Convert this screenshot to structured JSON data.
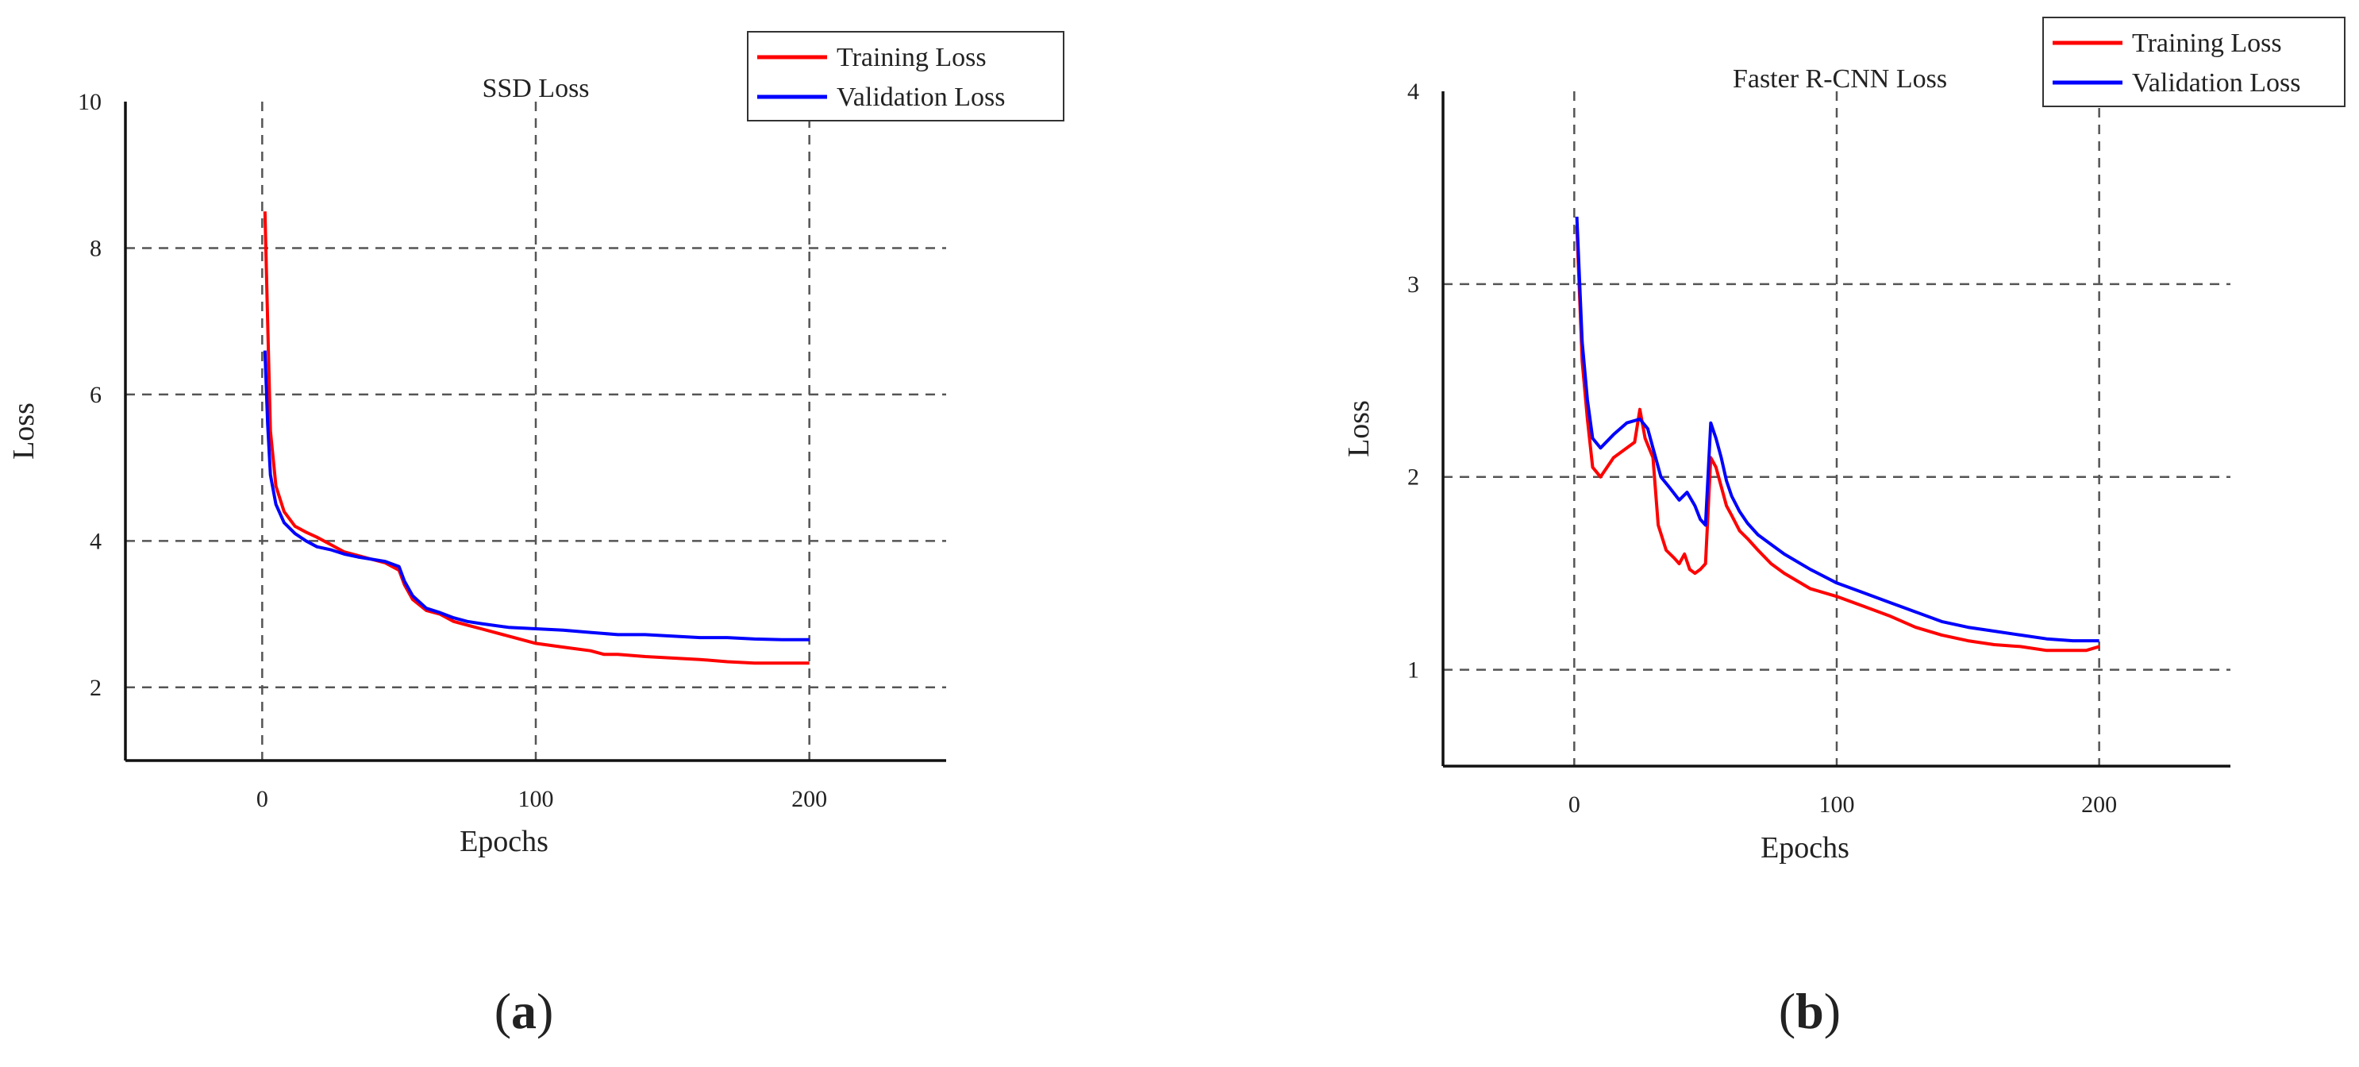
{
  "chart_data": [
    {
      "type": "line",
      "panel": "(a)",
      "panel_letter": "a",
      "title": "SSD Loss",
      "xlabel": "Epochs",
      "ylabel": "Loss",
      "xlim": [
        -50,
        250
      ],
      "ylim": [
        1,
        10
      ],
      "xticks": [
        0,
        100,
        200
      ],
      "yticks": [
        2,
        4,
        6,
        8,
        10
      ],
      "grid": true,
      "legend_position": "top-right",
      "series": [
        {
          "name": "Training Loss",
          "color": "#ff0000",
          "points": [
            [
              1,
              8.5
            ],
            [
              2,
              7.0
            ],
            [
              3,
              5.5
            ],
            [
              5,
              4.75
            ],
            [
              8,
              4.4
            ],
            [
              12,
              4.2
            ],
            [
              16,
              4.12
            ],
            [
              20,
              4.05
            ],
            [
              25,
              3.95
            ],
            [
              30,
              3.85
            ],
            [
              35,
              3.8
            ],
            [
              40,
              3.75
            ],
            [
              45,
              3.7
            ],
            [
              50,
              3.6
            ],
            [
              52,
              3.4
            ],
            [
              55,
              3.2
            ],
            [
              60,
              3.05
            ],
            [
              65,
              3.0
            ],
            [
              70,
              2.9
            ],
            [
              75,
              2.85
            ],
            [
              80,
              2.8
            ],
            [
              90,
              2.7
            ],
            [
              100,
              2.6
            ],
            [
              110,
              2.55
            ],
            [
              120,
              2.5
            ],
            [
              125,
              2.45
            ],
            [
              130,
              2.45
            ],
            [
              140,
              2.42
            ],
            [
              150,
              2.4
            ],
            [
              160,
              2.38
            ],
            [
              170,
              2.35
            ],
            [
              180,
              2.33
            ],
            [
              190,
              2.33
            ],
            [
              200,
              2.33
            ]
          ]
        },
        {
          "name": "Validation Loss",
          "color": "#0000ff",
          "points": [
            [
              1,
              6.6
            ],
            [
              2,
              5.6
            ],
            [
              3,
              4.9
            ],
            [
              5,
              4.5
            ],
            [
              8,
              4.25
            ],
            [
              12,
              4.1
            ],
            [
              16,
              4.0
            ],
            [
              20,
              3.92
            ],
            [
              25,
              3.88
            ],
            [
              30,
              3.82
            ],
            [
              35,
              3.78
            ],
            [
              40,
              3.75
            ],
            [
              45,
              3.72
            ],
            [
              50,
              3.65
            ],
            [
              52,
              3.45
            ],
            [
              55,
              3.25
            ],
            [
              60,
              3.08
            ],
            [
              65,
              3.02
            ],
            [
              70,
              2.95
            ],
            [
              75,
              2.9
            ],
            [
              80,
              2.87
            ],
            [
              90,
              2.82
            ],
            [
              100,
              2.8
            ],
            [
              110,
              2.78
            ],
            [
              120,
              2.75
            ],
            [
              130,
              2.72
            ],
            [
              140,
              2.72
            ],
            [
              150,
              2.7
            ],
            [
              160,
              2.68
            ],
            [
              170,
              2.68
            ],
            [
              180,
              2.66
            ],
            [
              190,
              2.65
            ],
            [
              200,
              2.65
            ]
          ]
        }
      ]
    },
    {
      "type": "line",
      "panel": "(b)",
      "panel_letter": "b",
      "title": "Faster R-CNN Loss",
      "xlabel": "Epochs",
      "ylabel": "Loss",
      "xlim": [
        -50,
        250
      ],
      "ylim": [
        0.5,
        4
      ],
      "xticks": [
        0,
        100,
        200
      ],
      "yticks": [
        1,
        2,
        3,
        4
      ],
      "grid": true,
      "legend_position": "top-right",
      "series": [
        {
          "name": "Training Loss",
          "color": "#ff0000",
          "points": [
            [
              1,
              3.3
            ],
            [
              3,
              2.6
            ],
            [
              5,
              2.3
            ],
            [
              7,
              2.05
            ],
            [
              10,
              2.0
            ],
            [
              15,
              2.1
            ],
            [
              20,
              2.15
            ],
            [
              23,
              2.18
            ],
            [
              25,
              2.35
            ],
            [
              27,
              2.2
            ],
            [
              30,
              2.1
            ],
            [
              32,
              1.75
            ],
            [
              35,
              1.62
            ],
            [
              38,
              1.58
            ],
            [
              40,
              1.55
            ],
            [
              42,
              1.6
            ],
            [
              44,
              1.52
            ],
            [
              46,
              1.5
            ],
            [
              48,
              1.52
            ],
            [
              50,
              1.55
            ],
            [
              52,
              2.1
            ],
            [
              54,
              2.05
            ],
            [
              56,
              1.95
            ],
            [
              58,
              1.85
            ],
            [
              60,
              1.8
            ],
            [
              63,
              1.72
            ],
            [
              66,
              1.68
            ],
            [
              70,
              1.62
            ],
            [
              75,
              1.55
            ],
            [
              80,
              1.5
            ],
            [
              90,
              1.42
            ],
            [
              100,
              1.38
            ],
            [
              110,
              1.33
            ],
            [
              120,
              1.28
            ],
            [
              130,
              1.22
            ],
            [
              140,
              1.18
            ],
            [
              150,
              1.15
            ],
            [
              160,
              1.13
            ],
            [
              170,
              1.12
            ],
            [
              180,
              1.1
            ],
            [
              190,
              1.1
            ],
            [
              195,
              1.1
            ],
            [
              200,
              1.12
            ]
          ]
        },
        {
          "name": "Validation Loss",
          "color": "#0000ff",
          "points": [
            [
              1,
              3.35
            ],
            [
              3,
              2.7
            ],
            [
              5,
              2.4
            ],
            [
              7,
              2.2
            ],
            [
              10,
              2.15
            ],
            [
              15,
              2.22
            ],
            [
              20,
              2.28
            ],
            [
              25,
              2.3
            ],
            [
              28,
              2.25
            ],
            [
              30,
              2.15
            ],
            [
              33,
              2.0
            ],
            [
              36,
              1.95
            ],
            [
              40,
              1.88
            ],
            [
              43,
              1.92
            ],
            [
              46,
              1.85
            ],
            [
              48,
              1.78
            ],
            [
              50,
              1.75
            ],
            [
              52,
              2.28
            ],
            [
              54,
              2.2
            ],
            [
              56,
              2.1
            ],
            [
              58,
              1.98
            ],
            [
              60,
              1.9
            ],
            [
              63,
              1.82
            ],
            [
              66,
              1.76
            ],
            [
              70,
              1.7
            ],
            [
              75,
              1.65
            ],
            [
              80,
              1.6
            ],
            [
              90,
              1.52
            ],
            [
              100,
              1.45
            ],
            [
              110,
              1.4
            ],
            [
              120,
              1.35
            ],
            [
              130,
              1.3
            ],
            [
              140,
              1.25
            ],
            [
              150,
              1.22
            ],
            [
              160,
              1.2
            ],
            [
              170,
              1.18
            ],
            [
              180,
              1.16
            ],
            [
              190,
              1.15
            ],
            [
              200,
              1.15
            ]
          ]
        }
      ]
    }
  ]
}
